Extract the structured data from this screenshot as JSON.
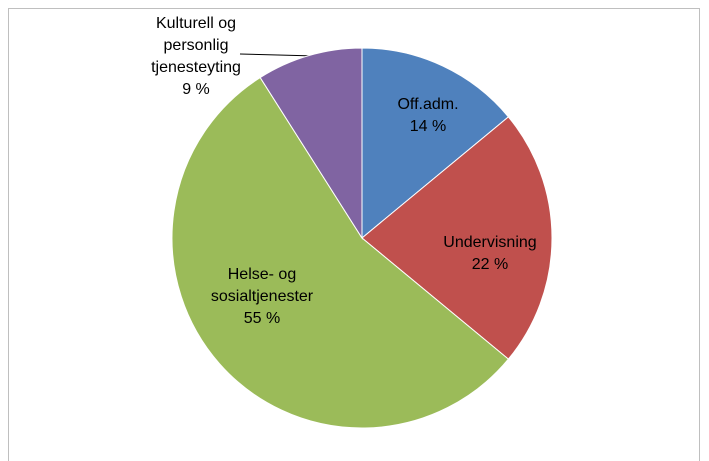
{
  "chart_data": {
    "type": "pie",
    "categories": [
      "Off.adm.",
      "Undervisning",
      "Helse- og sosialtjenester",
      "Kulturell og personlig tjenesteyting"
    ],
    "values": [
      14,
      22,
      55,
      9
    ],
    "value_labels": [
      "14 %",
      "22 %",
      "55 %",
      "9 %"
    ],
    "colors": [
      "#4f81bd",
      "#c0504d",
      "#9bbb59",
      "#8064a2"
    ]
  }
}
